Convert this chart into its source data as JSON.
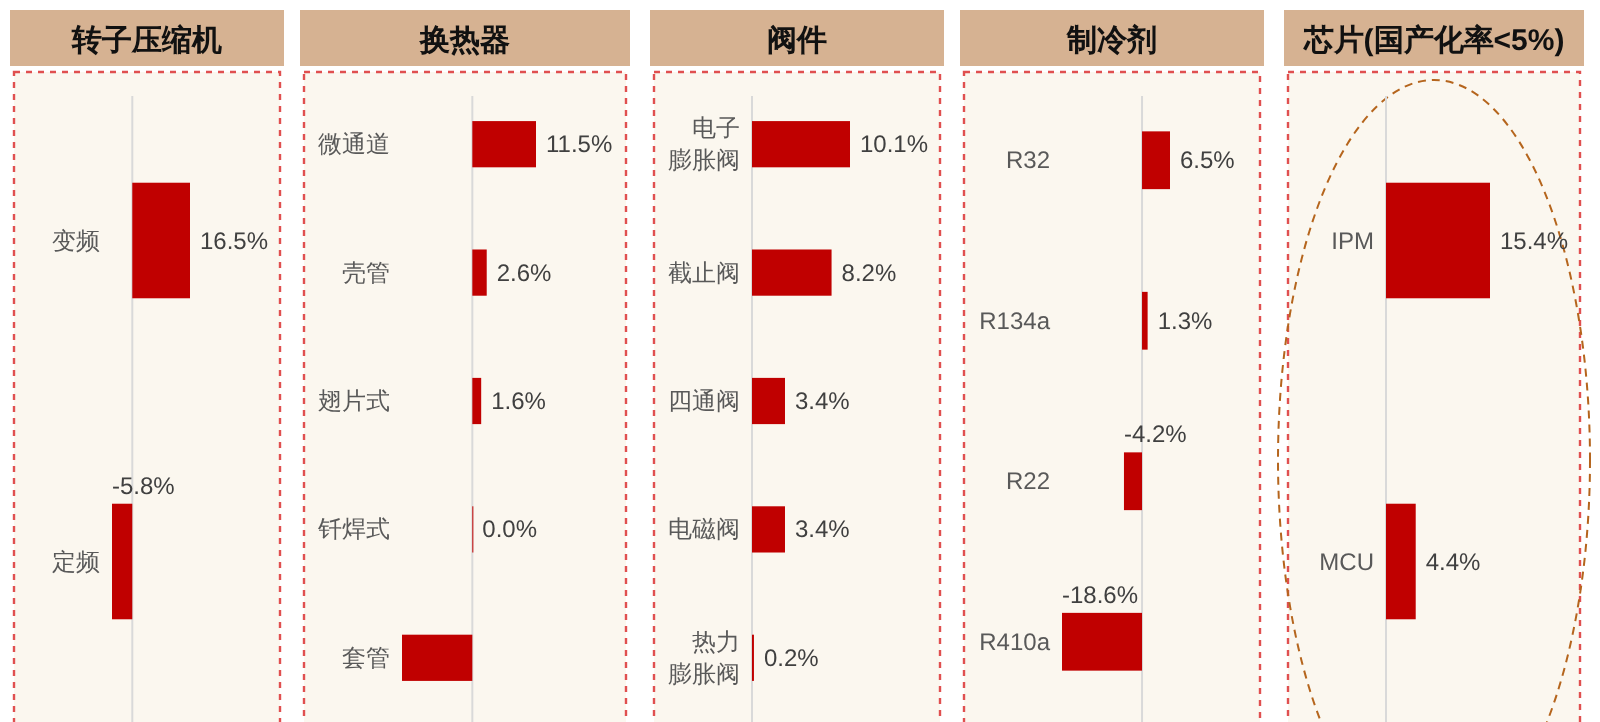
{
  "chart_data": [
    {
      "type": "bar",
      "orientation": "horizontal",
      "title": "转子压缩机",
      "categories": [
        "变频",
        "定频"
      ],
      "values": [
        16.5,
        -5.8
      ],
      "value_labels": [
        "16.5%",
        "-5.8%"
      ],
      "color": "#c00000"
    },
    {
      "type": "bar",
      "orientation": "horizontal",
      "title": "换热器",
      "categories": [
        "微通道",
        "壳管",
        "翅片式",
        "钎焊式",
        "套管"
      ],
      "values": [
        11.5,
        2.6,
        1.6,
        0.0,
        -12.7
      ],
      "value_labels": [
        "11.5%",
        "2.6%",
        "1.6%",
        "0.0%",
        null
      ],
      "color": "#c00000"
    },
    {
      "type": "bar",
      "orientation": "horizontal",
      "title": "阀件",
      "categories": [
        "电子膨胀阀",
        "截止阀",
        "四通阀",
        "电磁阀",
        "热力膨胀阀"
      ],
      "values": [
        10.1,
        8.2,
        3.4,
        3.4,
        0.2
      ],
      "value_labels": [
        "10.1%",
        "8.2%",
        "3.4%",
        "3.4%",
        "0.2%"
      ],
      "color": "#c00000"
    },
    {
      "type": "bar",
      "orientation": "horizontal",
      "title": "制冷剂",
      "categories": [
        "R32",
        "R134a",
        "R22",
        "R410a"
      ],
      "values": [
        6.5,
        1.3,
        -4.2,
        -18.6
      ],
      "value_labels": [
        "6.5%",
        "1.3%",
        "-4.2%",
        "-18.6%"
      ],
      "color": "#c00000"
    },
    {
      "type": "bar",
      "orientation": "horizontal",
      "title": "芯片(国产化率<5%)",
      "categories": [
        "IPM",
        "MCU"
      ],
      "values": [
        15.4,
        4.4
      ],
      "value_labels": [
        "15.4%",
        "4.4%"
      ],
      "color": "#c00000"
    }
  ]
}
